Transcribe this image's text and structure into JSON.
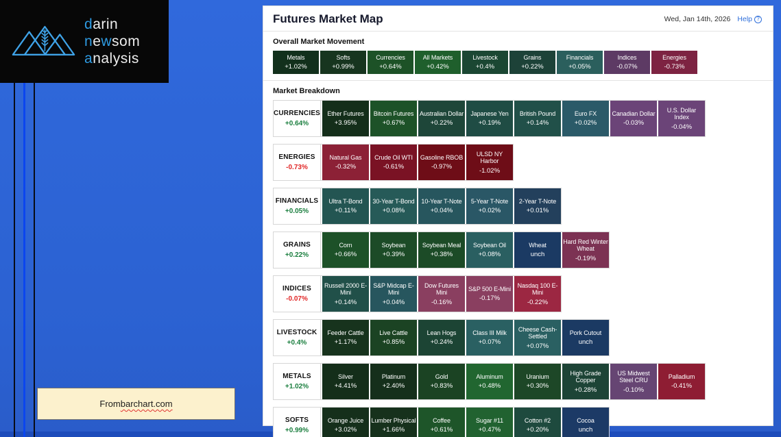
{
  "logo": {
    "lines": [
      [
        {
          "t": "d",
          "a": true
        },
        {
          "t": "arin",
          "a": false
        }
      ],
      [
        {
          "t": "n",
          "a": true
        },
        {
          "t": "e",
          "a": false
        },
        {
          "t": "w",
          "a": true
        },
        {
          "t": "som",
          "a": false
        }
      ],
      [
        {
          "t": "a",
          "a": true
        },
        {
          "t": "nalysis",
          "a": false
        }
      ]
    ],
    "accent_color": "#2e9be2"
  },
  "panel": {
    "title": "Futures Market Map",
    "date": "Wed, Jan 14th, 2026",
    "help_label": "Help",
    "help_icon": "?",
    "overall_heading": "Overall Market Movement",
    "breakdown_heading": "Market Breakdown",
    "overall_tiles": [
      {
        "name": "Metals",
        "pct": "+1.02%",
        "color": "#12301c"
      },
      {
        "name": "Softs",
        "pct": "+0.99%",
        "color": "#17351f"
      },
      {
        "name": "Currencies",
        "pct": "+0.64%",
        "color": "#1d5227"
      },
      {
        "name": "All Markets",
        "pct": "+0.42%",
        "color": "#1f5f2c"
      },
      {
        "name": "Livestock",
        "pct": "+0.4%",
        "color": "#1b4733"
      },
      {
        "name": "Grains",
        "pct": "+0.22%",
        "color": "#1d4238"
      },
      {
        "name": "Financials",
        "pct": "+0.05%",
        "color": "#2b5f5d"
      },
      {
        "name": "Indices",
        "pct": "-0.07%",
        "color": "#5d3a64"
      },
      {
        "name": "Energies",
        "pct": "-0.73%",
        "color": "#7d2342"
      }
    ],
    "rows": [
      {
        "label": "CURRENCIES",
        "pct": "+0.64%",
        "dir": "up",
        "tiles": [
          {
            "name": "Ether Futures",
            "pct": "+3.95%",
            "color": "#142e1a"
          },
          {
            "name": "Bitcoin Futures",
            "pct": "+0.67%",
            "color": "#1d5228"
          },
          {
            "name": "Australian Dollar",
            "pct": "+0.22%",
            "color": "#1e4639"
          },
          {
            "name": "Japanese Yen",
            "pct": "+0.19%",
            "color": "#1f4c44"
          },
          {
            "name": "British Pound",
            "pct": "+0.14%",
            "color": "#215049"
          },
          {
            "name": "Euro FX",
            "pct": "+0.02%",
            "color": "#2b5a68"
          },
          {
            "name": "Canadian Dollar",
            "pct": "-0.03%",
            "color": "#6b4478"
          },
          {
            "name": "U.S. Dollar Index",
            "pct": "-0.04%",
            "color": "#6b4478"
          }
        ]
      },
      {
        "label": "ENERGIES",
        "pct": "-0.73%",
        "dir": "down",
        "tiles": [
          {
            "name": "Natural Gas",
            "pct": "-0.32%",
            "color": "#8c2136"
          },
          {
            "name": "Crude Oil WTI",
            "pct": "-0.61%",
            "color": "#7a1224"
          },
          {
            "name": "Gasoline RBOB",
            "pct": "-0.97%",
            "color": "#6e0d17"
          },
          {
            "name": "ULSD NY Harbor",
            "pct": "-1.02%",
            "color": "#6e0d17"
          }
        ]
      },
      {
        "label": "FINANCIALS",
        "pct": "+0.05%",
        "dir": "up",
        "tiles": [
          {
            "name": "Ultra T-Bond",
            "pct": "+0.11%",
            "color": "#235552"
          },
          {
            "name": "30-Year T-Bond",
            "pct": "+0.08%",
            "color": "#265a58"
          },
          {
            "name": "10-Year T-Note",
            "pct": "+0.04%",
            "color": "#27565e"
          },
          {
            "name": "5-Year T-Note",
            "pct": "+0.02%",
            "color": "#2a5766"
          },
          {
            "name": "2-Year T-Note",
            "pct": "+0.01%",
            "color": "#23405c"
          }
        ]
      },
      {
        "label": "GRAINS",
        "pct": "+0.22%",
        "dir": "up",
        "tiles": [
          {
            "name": "Corn",
            "pct": "+0.66%",
            "color": "#1d5128"
          },
          {
            "name": "Soybean",
            "pct": "+0.39%",
            "color": "#1c4b27"
          },
          {
            "name": "Soybean Meal",
            "pct": "+0.38%",
            "color": "#1c4b27"
          },
          {
            "name": "Soybean Oil",
            "pct": "+0.08%",
            "color": "#2a5f61"
          },
          {
            "name": "Wheat",
            "pct": "unch",
            "color": "#1b3a63"
          },
          {
            "name": "Hard Red Winter Wheat",
            "pct": "-0.19%",
            "color": "#7c3253"
          }
        ]
      },
      {
        "label": "INDICES",
        "pct": "-0.07%",
        "dir": "down",
        "tiles": [
          {
            "name": "Russell 2000 E-Mini",
            "pct": "+0.14%",
            "color": "#215049"
          },
          {
            "name": "S&P Midcap E-Mini",
            "pct": "+0.04%",
            "color": "#27565e"
          },
          {
            "name": "Dow Futures Mini",
            "pct": "-0.16%",
            "color": "#8a3f60"
          },
          {
            "name": "S&P 500 E-Mini",
            "pct": "-0.17%",
            "color": "#8a3f60"
          },
          {
            "name": "Nasdaq 100 E-Mini",
            "pct": "-0.22%",
            "color": "#9c2742"
          }
        ]
      },
      {
        "label": "LIVESTOCK",
        "pct": "+0.4%",
        "dir": "up",
        "tiles": [
          {
            "name": "Feeder Cattle",
            "pct": "+1.17%",
            "color": "#17331d"
          },
          {
            "name": "Live Cattle",
            "pct": "+0.85%",
            "color": "#1b4323"
          },
          {
            "name": "Lean Hogs",
            "pct": "+0.24%",
            "color": "#1c4434"
          },
          {
            "name": "Class III Milk",
            "pct": "+0.07%",
            "color": "#2a6062"
          },
          {
            "name": "Cheese Cash-Settled",
            "pct": "+0.07%",
            "color": "#2a6062"
          },
          {
            "name": "Pork Cutout",
            "pct": "unch",
            "color": "#1b3a63"
          }
        ]
      },
      {
        "label": "METALS",
        "pct": "+1.02%",
        "dir": "up",
        "tiles": [
          {
            "name": "Silver",
            "pct": "+4.41%",
            "color": "#142e1a"
          },
          {
            "name": "Platinum",
            "pct": "+2.40%",
            "color": "#152f1b"
          },
          {
            "name": "Gold",
            "pct": "+0.83%",
            "color": "#1b4323"
          },
          {
            "name": "Aluminum",
            "pct": "+0.48%",
            "color": "#216630"
          },
          {
            "name": "Uranium",
            "pct": "+0.30%",
            "color": "#1d4727"
          },
          {
            "name": "High Grade Copper",
            "pct": "+0.28%",
            "color": "#1d4436"
          },
          {
            "name": "US Midwest Steel CRU",
            "pct": "-0.10%",
            "color": "#664573"
          },
          {
            "name": "Palladium",
            "pct": "-0.41%",
            "color": "#8e1d33"
          }
        ]
      },
      {
        "label": "SOFTS",
        "pct": "+0.99%",
        "dir": "up",
        "tiles": [
          {
            "name": "Orange Juice",
            "pct": "+3.02%",
            "color": "#152f1b"
          },
          {
            "name": "Lumber Physical",
            "pct": "+1.66%",
            "color": "#16311c"
          },
          {
            "name": "Coffee",
            "pct": "+0.61%",
            "color": "#1e5529"
          },
          {
            "name": "Sugar #11",
            "pct": "+0.47%",
            "color": "#216230"
          },
          {
            "name": "Cotton #2",
            "pct": "+0.20%",
            "color": "#1e4a3e"
          },
          {
            "name": "Cocoa",
            "pct": "unch",
            "color": "#1c3a66"
          }
        ]
      }
    ]
  },
  "source_box": {
    "prefix": "From ",
    "link": "barchart.com"
  },
  "colors": {
    "positive_label": "#1a7e3e",
    "negative_label": "#e12626",
    "background_blue": "#2b61d1",
    "accent_line_blue": "#0b46ee",
    "logo_accent": "#2e9be2"
  }
}
